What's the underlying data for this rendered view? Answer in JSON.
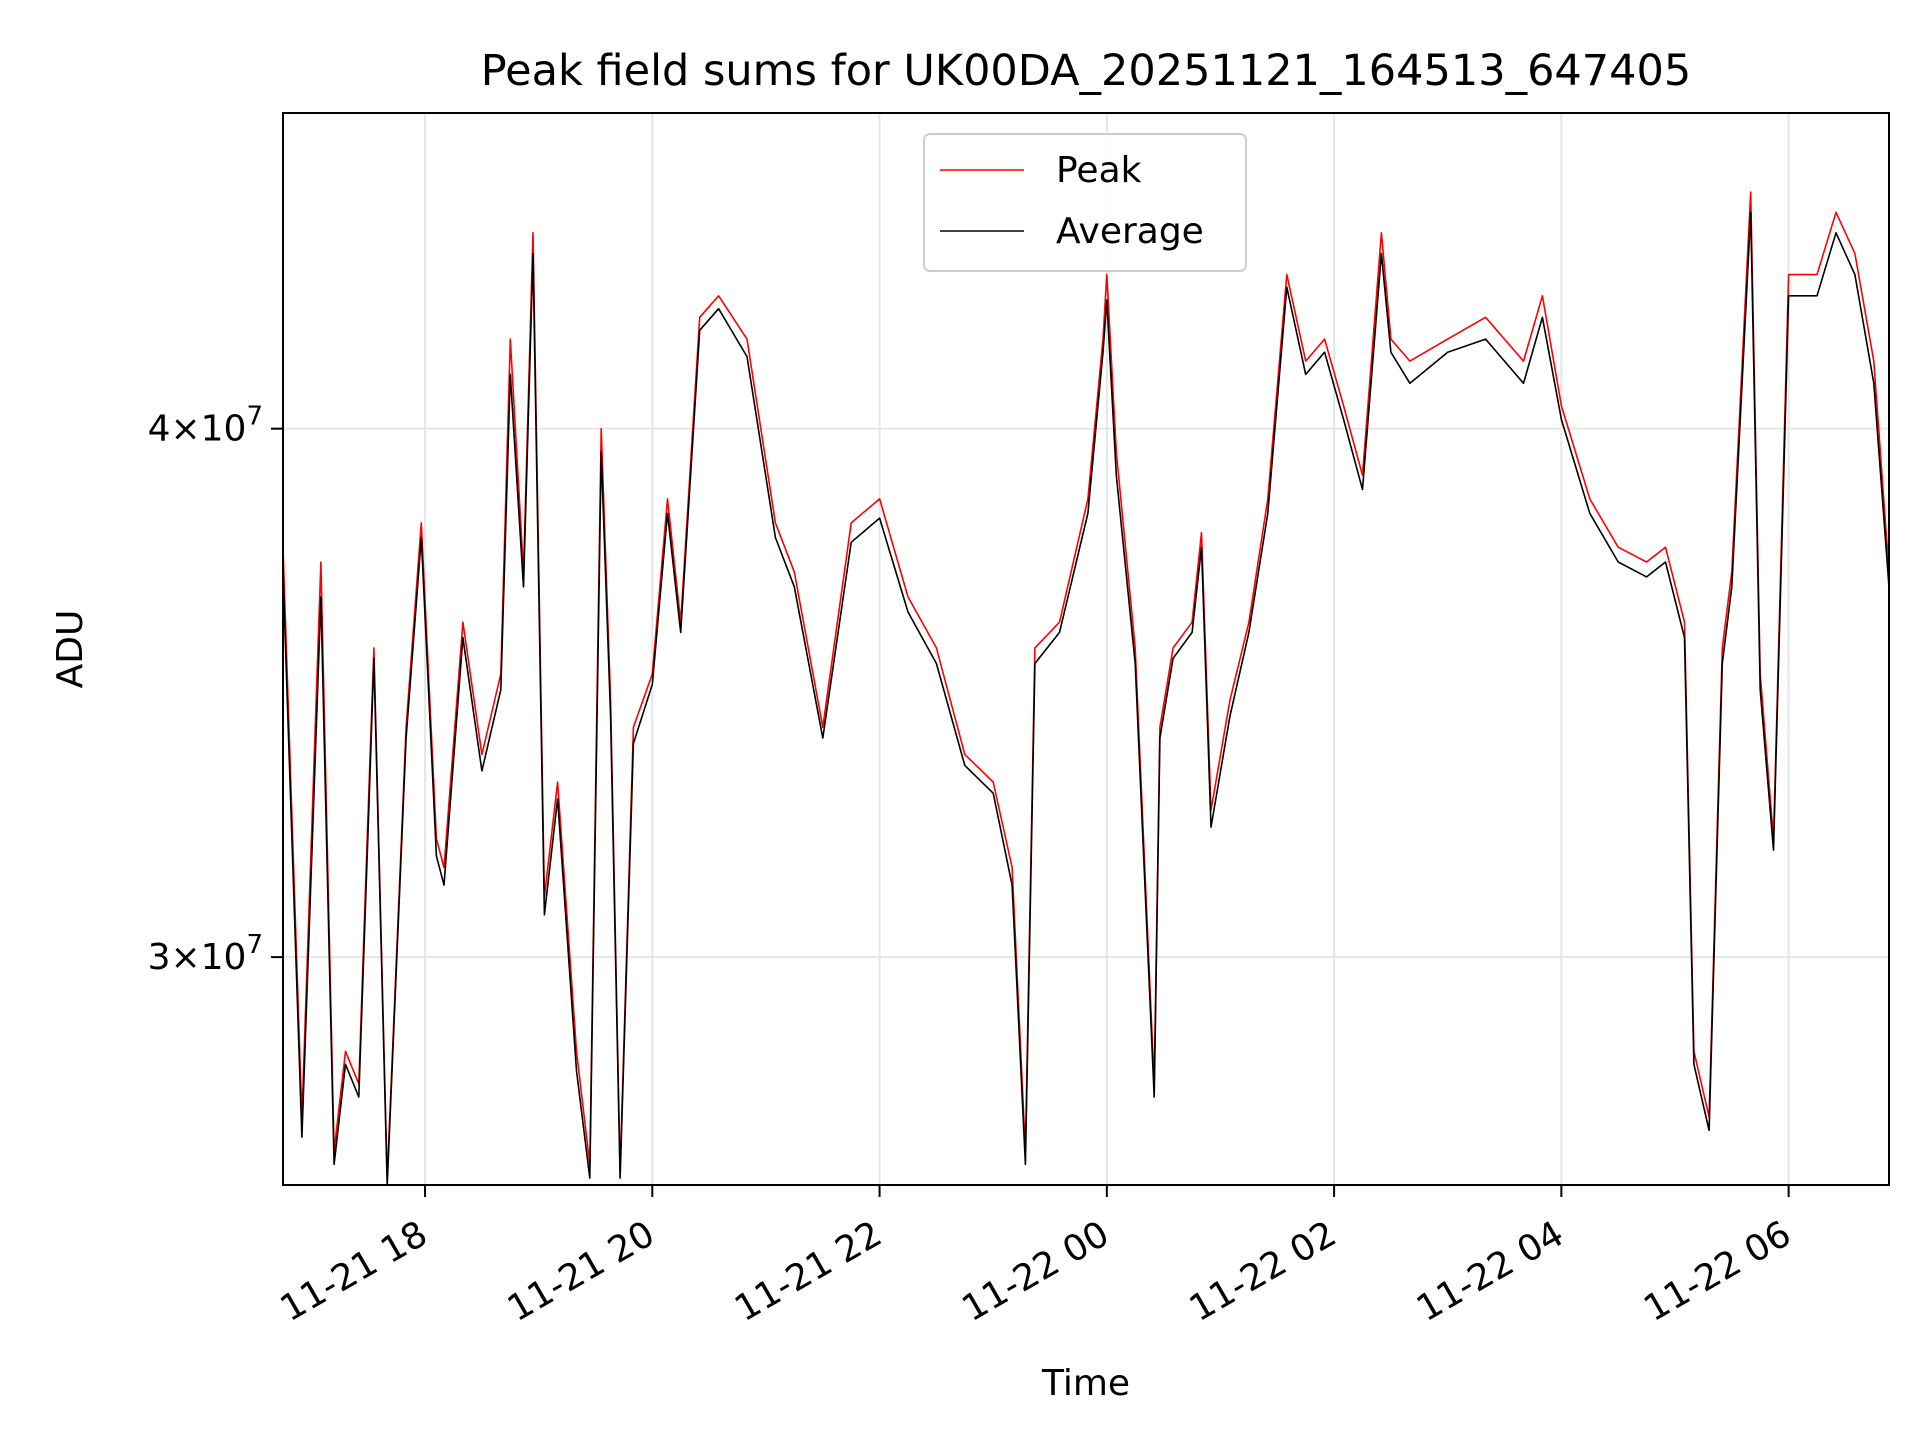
{
  "chart_data": {
    "type": "line",
    "title": "Peak field sums for UK00DA_20251121_164513_647405",
    "xlabel": "Time",
    "ylabel": "ADU",
    "yscale": "log",
    "xlim": [
      "2025-11-21 16:45",
      "2025-11-22 06:53"
    ],
    "ylim": [
      26500000,
      47500000
    ],
    "grid": true,
    "legend_position": "upper center",
    "x_ticks": [
      {
        "t": "2025-11-21 18:00",
        "label": "11-21 18"
      },
      {
        "t": "2025-11-21 20:00",
        "label": "11-21 20"
      },
      {
        "t": "2025-11-21 22:00",
        "label": "11-21 22"
      },
      {
        "t": "2025-11-22 00:00",
        "label": "11-22 00"
      },
      {
        "t": "2025-11-22 02:00",
        "label": "11-22 02"
      },
      {
        "t": "2025-11-22 04:00",
        "label": "11-22 04"
      },
      {
        "t": "2025-11-22 06:00",
        "label": "11-22 06"
      }
    ],
    "y_ticks": [
      {
        "value": 30000000,
        "mant": "3",
        "exp": "7"
      },
      {
        "value": 40000000,
        "mant": "4",
        "exp": "7"
      }
    ],
    "y_tick_times_sign": "×10",
    "series": [
      {
        "name": "Peak",
        "color": "#ff0000",
        "x": [
          "2025-11-21 16:45",
          "2025-11-21 16:55",
          "2025-11-21 17:05",
          "2025-11-21 17:12",
          "2025-11-21 17:18",
          "2025-11-21 17:25",
          "2025-11-21 17:30",
          "2025-11-21 17:33",
          "2025-11-21 17:40",
          "2025-11-21 17:50",
          "2025-11-21 17:58",
          "2025-11-21 18:06",
          "2025-11-21 18:10",
          "2025-11-21 18:20",
          "2025-11-21 18:30",
          "2025-11-21 18:40",
          "2025-11-21 18:45",
          "2025-11-21 18:52",
          "2025-11-21 18:57",
          "2025-11-21 19:03",
          "2025-11-21 19:10",
          "2025-11-21 19:20",
          "2025-11-21 19:27",
          "2025-11-21 19:33",
          "2025-11-21 19:38",
          "2025-11-21 19:43",
          "2025-11-21 19:50",
          "2025-11-21 20:00",
          "2025-11-21 20:08",
          "2025-11-21 20:15",
          "2025-11-21 20:25",
          "2025-11-21 20:35",
          "2025-11-21 20:50",
          "2025-11-21 21:05",
          "2025-11-21 21:15",
          "2025-11-21 21:30",
          "2025-11-21 21:45",
          "2025-11-21 22:00",
          "2025-11-21 22:15",
          "2025-11-21 22:30",
          "2025-11-21 22:45",
          "2025-11-21 23:00",
          "2025-11-21 23:10",
          "2025-11-21 23:17",
          "2025-11-21 23:22",
          "2025-11-21 23:35",
          "2025-11-21 23:50",
          "2025-11-21 23:58",
          "2025-11-22 00:00",
          "2025-11-22 00:05",
          "2025-11-22 00:15",
          "2025-11-22 00:25",
          "2025-11-22 00:28",
          "2025-11-22 00:35",
          "2025-11-22 00:45",
          "2025-11-22 00:50",
          "2025-11-22 00:55",
          "2025-11-22 01:05",
          "2025-11-22 01:15",
          "2025-11-22 01:25",
          "2025-11-22 01:35",
          "2025-11-22 01:45",
          "2025-11-22 01:55",
          "2025-11-22 02:05",
          "2025-11-22 02:15",
          "2025-11-22 02:25",
          "2025-11-22 02:30",
          "2025-11-22 02:40",
          "2025-11-22 03:00",
          "2025-11-22 03:20",
          "2025-11-22 03:40",
          "2025-11-22 03:50",
          "2025-11-22 04:00",
          "2025-11-22 04:15",
          "2025-11-22 04:30",
          "2025-11-22 04:45",
          "2025-11-22 04:55",
          "2025-11-22 05:05",
          "2025-11-22 05:10",
          "2025-11-22 05:18",
          "2025-11-22 05:25",
          "2025-11-22 05:30",
          "2025-11-22 05:40",
          "2025-11-22 05:45",
          "2025-11-22 05:52",
          "2025-11-22 06:00",
          "2025-11-22 06:15",
          "2025-11-22 06:25",
          "2025-11-22 06:35",
          "2025-11-22 06:45",
          "2025-11-22 06:53"
        ],
        "y": [
          37500000,
          27500000,
          37200000,
          27000000,
          28500000,
          28000000,
          32500000,
          35500000,
          26600000,
          34000000,
          38000000,
          32000000,
          31500000,
          36000000,
          33500000,
          35000000,
          42000000,
          37000000,
          44500000,
          31000000,
          33000000,
          28500000,
          26800000,
          40000000,
          34500000,
          26700000,
          34000000,
          35000000,
          38500000,
          36000000,
          42500000,
          43000000,
          42000000,
          38000000,
          37000000,
          34000000,
          38000000,
          38500000,
          36500000,
          35500000,
          33500000,
          33000000,
          31500000,
          27000000,
          35500000,
          36000000,
          38500000,
          42000000,
          43500000,
          39500000,
          35500000,
          28000000,
          34000000,
          35500000,
          36000000,
          37800000,
          32500000,
          34500000,
          36000000,
          38500000,
          43500000,
          41500000,
          42000000,
          40500000,
          39000000,
          44500000,
          42000000,
          41500000,
          42000000,
          42500000,
          41500000,
          43000000,
          40500000,
          38500000,
          37500000,
          37200000,
          37500000,
          36000000,
          28500000,
          27500000,
          35500000,
          37000000,
          45500000,
          35000000,
          32000000,
          43500000,
          43500000,
          45000000,
          44000000,
          41500000,
          37000000
        ]
      },
      {
        "name": "Average",
        "color": "#000000",
        "x": [
          "2025-11-21 16:45",
          "2025-11-21 16:55",
          "2025-11-21 17:05",
          "2025-11-21 17:12",
          "2025-11-21 17:18",
          "2025-11-21 17:25",
          "2025-11-21 17:30",
          "2025-11-21 17:33",
          "2025-11-21 17:40",
          "2025-11-21 17:50",
          "2025-11-21 17:58",
          "2025-11-21 18:06",
          "2025-11-21 18:10",
          "2025-11-21 18:20",
          "2025-11-21 18:30",
          "2025-11-21 18:40",
          "2025-11-21 18:45",
          "2025-11-21 18:52",
          "2025-11-21 18:57",
          "2025-11-21 19:03",
          "2025-11-21 19:10",
          "2025-11-21 19:20",
          "2025-11-21 19:27",
          "2025-11-21 19:33",
          "2025-11-21 19:38",
          "2025-11-21 19:43",
          "2025-11-21 19:50",
          "2025-11-21 20:00",
          "2025-11-21 20:08",
          "2025-11-21 20:15",
          "2025-11-21 20:25",
          "2025-11-21 20:35",
          "2025-11-21 20:50",
          "2025-11-21 21:05",
          "2025-11-21 21:15",
          "2025-11-21 21:30",
          "2025-11-21 21:45",
          "2025-11-21 22:00",
          "2025-11-21 22:15",
          "2025-11-21 22:30",
          "2025-11-21 22:45",
          "2025-11-21 23:00",
          "2025-11-21 23:10",
          "2025-11-21 23:17",
          "2025-11-21 23:22",
          "2025-11-21 23:35",
          "2025-11-21 23:50",
          "2025-11-21 23:58",
          "2025-11-22 00:00",
          "2025-11-22 00:05",
          "2025-11-22 00:15",
          "2025-11-22 00:25",
          "2025-11-22 00:28",
          "2025-11-22 00:35",
          "2025-11-22 00:45",
          "2025-11-22 00:50",
          "2025-11-22 00:55",
          "2025-11-22 01:05",
          "2025-11-22 01:15",
          "2025-11-22 01:25",
          "2025-11-22 01:35",
          "2025-11-22 01:45",
          "2025-11-22 01:55",
          "2025-11-22 02:05",
          "2025-11-22 02:15",
          "2025-11-22 02:25",
          "2025-11-22 02:30",
          "2025-11-22 02:40",
          "2025-11-22 03:00",
          "2025-11-22 03:20",
          "2025-11-22 03:40",
          "2025-11-22 03:50",
          "2025-11-22 04:00",
          "2025-11-22 04:15",
          "2025-11-22 04:30",
          "2025-11-22 04:45",
          "2025-11-22 04:55",
          "2025-11-22 05:05",
          "2025-11-22 05:10",
          "2025-11-22 05:18",
          "2025-11-22 05:25",
          "2025-11-22 05:30",
          "2025-11-22 05:40",
          "2025-11-22 05:45",
          "2025-11-22 05:52",
          "2025-11-22 06:00",
          "2025-11-22 06:15",
          "2025-11-22 06:25",
          "2025-11-22 06:35",
          "2025-11-22 06:45",
          "2025-11-22 06:53"
        ],
        "y": [
          37000000,
          27200000,
          36500000,
          26800000,
          28300000,
          27800000,
          32200000,
          35300000,
          26500000,
          33800000,
          37700000,
          31700000,
          31200000,
          35700000,
          33200000,
          34700000,
          41200000,
          36700000,
          44000000,
          30700000,
          32700000,
          28200000,
          26600000,
          39500000,
          34200000,
          26600000,
          33700000,
          34800000,
          38200000,
          35800000,
          42200000,
          42700000,
          41600000,
          37700000,
          36700000,
          33800000,
          37600000,
          38100000,
          36200000,
          35200000,
          33300000,
          32800000,
          31200000,
          26800000,
          35200000,
          35800000,
          38200000,
          41700000,
          42900000,
          39000000,
          35200000,
          27800000,
          33800000,
          35300000,
          35800000,
          37500000,
          32200000,
          34200000,
          35800000,
          38200000,
          43200000,
          41200000,
          41700000,
          40200000,
          38700000,
          44000000,
          41700000,
          41000000,
          41700000,
          42000000,
          41000000,
          42500000,
          40200000,
          38200000,
          37200000,
          36900000,
          37200000,
          35700000,
          28300000,
          27300000,
          35200000,
          36700000,
          45000000,
          34700000,
          31800000,
          43000000,
          43000000,
          44500000,
          43500000,
          41000000,
          36700000
        ]
      }
    ]
  }
}
